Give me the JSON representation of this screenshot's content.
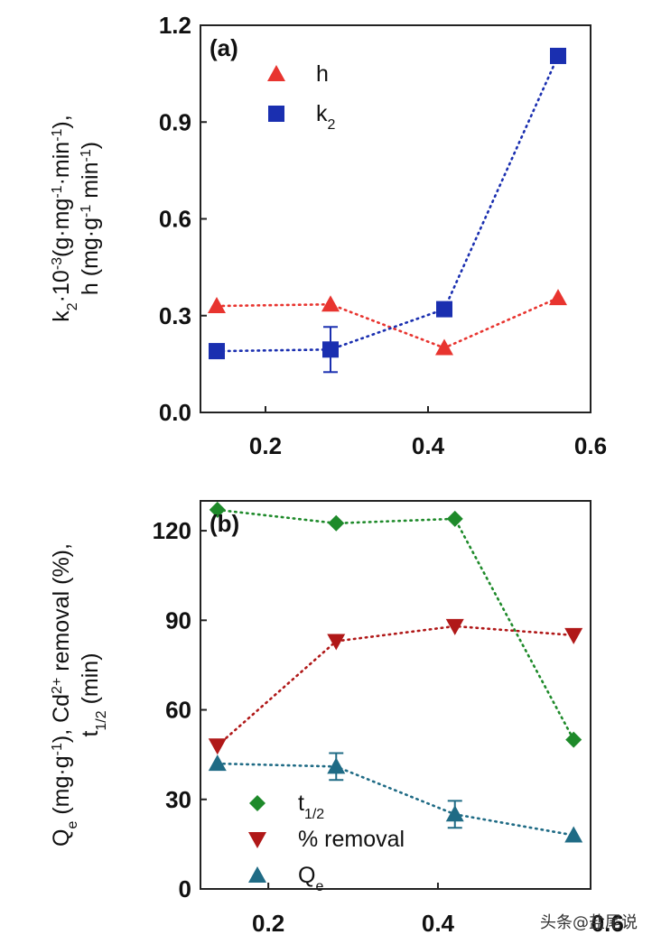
{
  "chart_data": [
    {
      "type": "scatter",
      "panel_label": "(a)",
      "ylabel_line1": "k2·10-3(g·mg-1·min-1),",
      "ylabel_line2": "h (mg·g-1 min-1)",
      "xlim": [
        0.12,
        0.6
      ],
      "ylim": [
        0.0,
        1.2
      ],
      "xticks": [
        "0.2",
        "0.4",
        "0.6"
      ],
      "yticks": [
        "0.0",
        "0.3",
        "0.6",
        "0.9",
        "1.2"
      ],
      "legend_position": "top-left",
      "series": [
        {
          "name": "h",
          "marker": "triangle-up",
          "color": "#e8342f",
          "x": [
            0.14,
            0.28,
            0.42,
            0.56
          ],
          "y": [
            0.33,
            0.335,
            0.2,
            0.355
          ]
        },
        {
          "name": "k2",
          "marker": "square",
          "color": "#1a2fb0",
          "x": [
            0.14,
            0.28,
            0.42,
            0.56
          ],
          "y": [
            0.19,
            0.195,
            0.32,
            1.105
          ],
          "error": [
            0,
            0.07,
            0,
            0
          ]
        }
      ]
    },
    {
      "type": "scatter",
      "panel_label": "(b)",
      "ylabel_line1": "Qe (mg·g-1), Cd2+ removal (%),",
      "ylabel_line2": "t1/2 (min)",
      "xlim": [
        0.12,
        0.58
      ],
      "ylim": [
        0,
        130
      ],
      "xticks": [
        "0.2",
        "0.4",
        "0.6"
      ],
      "yticks": [
        "0",
        "30",
        "60",
        "90",
        "120"
      ],
      "legend_position": "bottom-left",
      "series": [
        {
          "name": "t1/2",
          "marker": "diamond",
          "color": "#1e8a2a",
          "x": [
            0.14,
            0.28,
            0.42,
            0.56
          ],
          "y": [
            127,
            122.5,
            124,
            50
          ]
        },
        {
          "name": "% removal",
          "marker": "triangle-down",
          "color": "#b01818",
          "x": [
            0.14,
            0.28,
            0.42,
            0.56
          ],
          "y": [
            48,
            83,
            88,
            85
          ]
        },
        {
          "name": "Qe",
          "marker": "triangle-up",
          "color": "#1f6b85",
          "x": [
            0.14,
            0.28,
            0.42,
            0.56
          ],
          "y": [
            42,
            41,
            25,
            18
          ],
          "error": [
            0,
            4.5,
            4.5,
            0
          ]
        }
      ]
    }
  ],
  "watermark": "头条@盐尾说"
}
